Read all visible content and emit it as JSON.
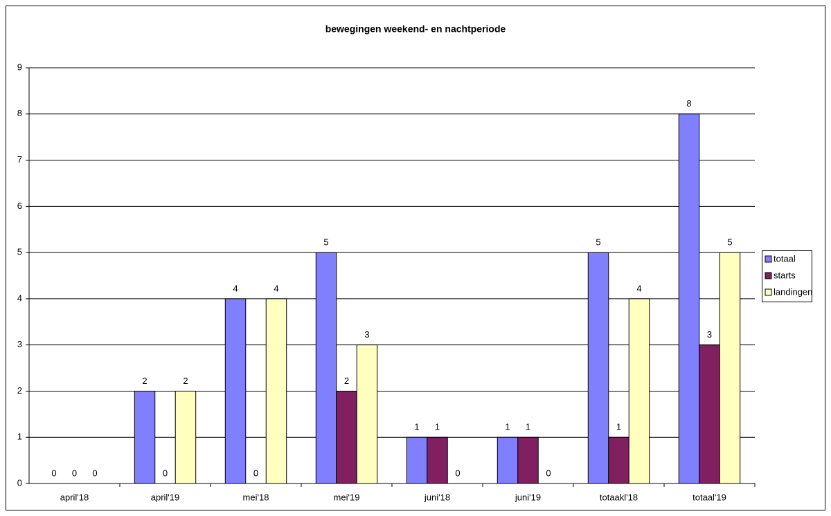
{
  "chart_data": {
    "type": "bar",
    "title": "bewegingen weekend- en nachtperiode",
    "categories": [
      "april'18",
      "april'19",
      "mei'18",
      "mei'19",
      "juni'18",
      "juni'19",
      "totaakl'18",
      "totaal'19"
    ],
    "series": [
      {
        "name": "totaal",
        "color": "#8080ff",
        "values": [
          0,
          2,
          4,
          5,
          1,
          1,
          5,
          8
        ]
      },
      {
        "name": "starts",
        "color": "#802060",
        "values": [
          0,
          0,
          0,
          2,
          1,
          1,
          1,
          3
        ]
      },
      {
        "name": "landingen",
        "color": "#ffffc0",
        "values": [
          0,
          2,
          4,
          3,
          0,
          0,
          4,
          5
        ]
      }
    ],
    "ylim": [
      0,
      9
    ],
    "yticks": [
      0,
      1,
      2,
      3,
      4,
      5,
      6,
      7,
      8,
      9
    ],
    "grid": true,
    "legend": "right"
  }
}
